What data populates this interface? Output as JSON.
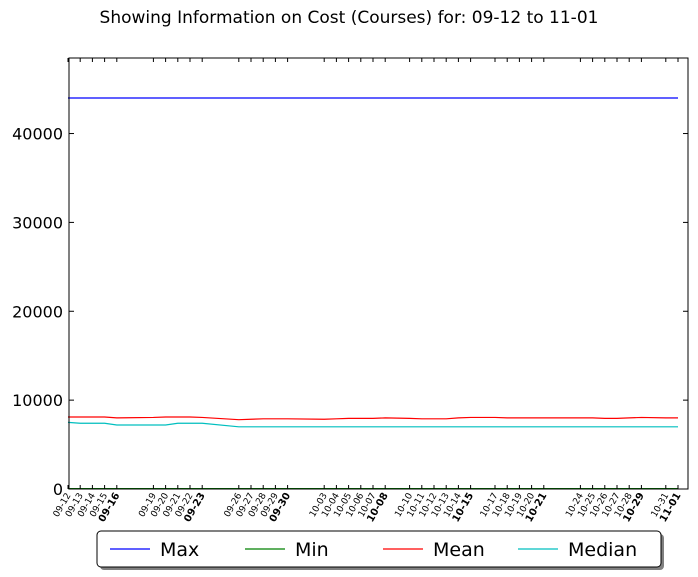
{
  "chart_data": {
    "type": "line",
    "title": "Showing Information on Cost (Courses) for: 09-12 to 11-01",
    "xlabel": "",
    "ylabel": "",
    "ylim": [
      0,
      48500
    ],
    "yticks": [
      0,
      10000,
      20000,
      30000,
      40000
    ],
    "grid": false,
    "legend_position": "bottom-center",
    "x": [
      "09-12",
      "09-13",
      "09-14",
      "09-15",
      "09-16",
      "09-19",
      "09-20",
      "09-21",
      "09-22",
      "09-23",
      "09-26",
      "09-27",
      "09-28",
      "09-29",
      "09-30",
      "10-03",
      "10-04",
      "10-05",
      "10-06",
      "10-07",
      "10-08",
      "10-10",
      "10-11",
      "10-12",
      "10-13",
      "10-14",
      "10-15",
      "10-17",
      "10-18",
      "10-19",
      "10-20",
      "10-21",
      "10-24",
      "10-25",
      "10-26",
      "10-27",
      "10-28",
      "10-29",
      "10-31",
      "11-01"
    ],
    "bold_ticks": [
      "09-16",
      "09-23",
      "09-30",
      "10-08",
      "10-15",
      "10-21",
      "10-29",
      "11-01"
    ],
    "series": [
      {
        "name": "Max",
        "color": "#0000ff",
        "values": [
          44000,
          44000,
          44000,
          44000,
          44000,
          44000,
          44000,
          44000,
          44000,
          44000,
          44000,
          44000,
          44000,
          44000,
          44000,
          44000,
          44000,
          44000,
          44000,
          44000,
          44000,
          44000,
          44000,
          44000,
          44000,
          44000,
          44000,
          44000,
          44000,
          44000,
          44000,
          44000,
          44000,
          44000,
          44000,
          44000,
          44000,
          44000,
          44000,
          44000
        ]
      },
      {
        "name": "Min",
        "color": "#008000",
        "values": [
          50,
          50,
          50,
          50,
          50,
          50,
          50,
          50,
          50,
          50,
          50,
          50,
          50,
          50,
          50,
          50,
          50,
          50,
          50,
          50,
          50,
          50,
          50,
          50,
          50,
          50,
          50,
          50,
          50,
          50,
          50,
          50,
          50,
          50,
          50,
          50,
          50,
          50,
          50,
          50
        ]
      },
      {
        "name": "Mean",
        "color": "#ff0000",
        "values": [
          8100,
          8100,
          8100,
          8100,
          8000,
          8050,
          8100,
          8100,
          8100,
          8050,
          7800,
          7850,
          7900,
          7900,
          7900,
          7850,
          7900,
          7950,
          7950,
          7950,
          8000,
          7950,
          7900,
          7900,
          7900,
          8000,
          8050,
          8050,
          8000,
          8000,
          8000,
          8000,
          8000,
          8000,
          7950,
          7950,
          8000,
          8050,
          8000,
          8000
        ]
      },
      {
        "name": "Median",
        "color": "#00bfbf",
        "values": [
          7500,
          7400,
          7400,
          7400,
          7200,
          7200,
          7200,
          7400,
          7400,
          7400,
          7000,
          7000,
          7000,
          7000,
          7000,
          7000,
          7000,
          7000,
          7000,
          7000,
          7000,
          7000,
          7000,
          7000,
          7000,
          7000,
          7000,
          7000,
          7000,
          7000,
          7000,
          7000,
          7000,
          7000,
          7000,
          7000,
          7000,
          7000,
          7000,
          7000
        ]
      }
    ]
  }
}
